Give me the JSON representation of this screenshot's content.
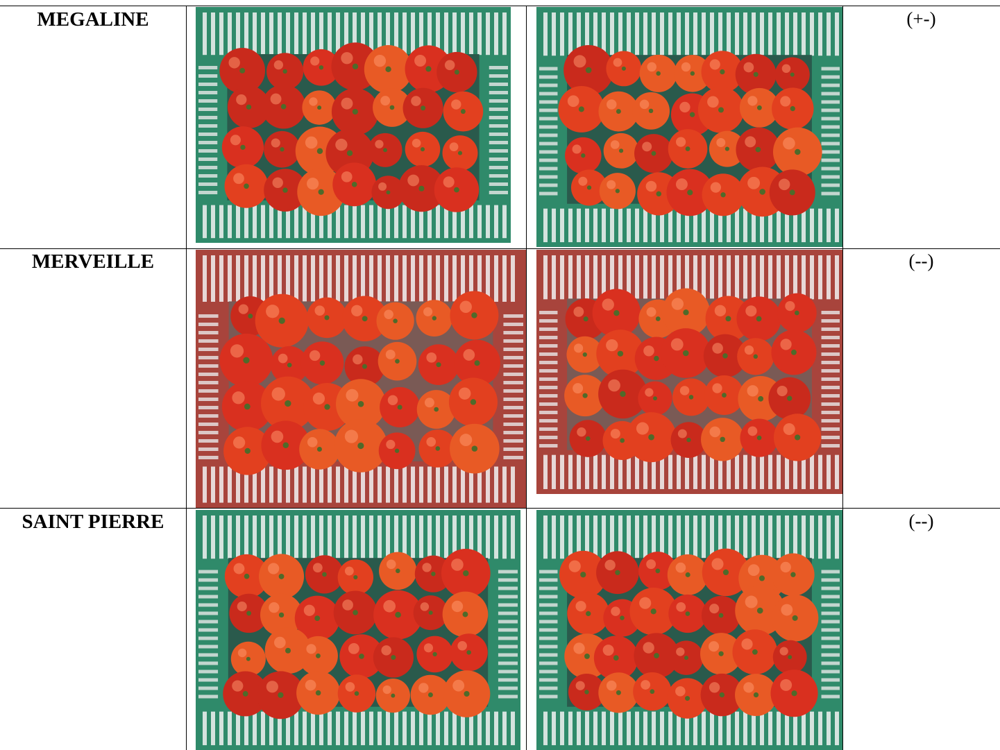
{
  "table": {
    "rows": [
      [
        "MEGALINE",
        "(+-)"
      ],
      [
        "MERVEILLE",
        "(--)"
      ],
      [
        "SAINT PIERRE",
        "(--)"
      ]
    ]
  }
}
